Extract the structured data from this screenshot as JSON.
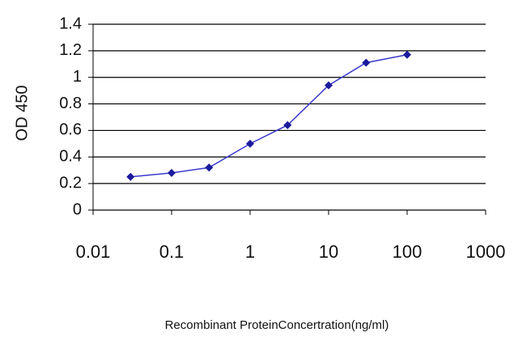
{
  "chart_data": {
    "type": "line",
    "x_label": "Recombinant ProteinConcertration(ng/ml)",
    "y_label": "OD 450",
    "x_log": true,
    "grid": true,
    "xlim": [
      0.01,
      1000
    ],
    "xticks": [
      0.01,
      0.1,
      1,
      10,
      100,
      1000
    ],
    "ylim": [
      0,
      1.4
    ],
    "yticks": [
      0,
      0.2,
      0.4,
      0.6,
      0.8,
      1,
      1.2,
      1.4
    ],
    "series": [
      {
        "color": "#1a1a9c",
        "x": [
          0.03,
          0.1,
          0.3,
          1,
          3,
          10,
          30,
          100
        ],
        "values": [
          0.25,
          0.28,
          0.32,
          0.5,
          0.64,
          0.94,
          1.11,
          1.17
        ]
      }
    ]
  }
}
